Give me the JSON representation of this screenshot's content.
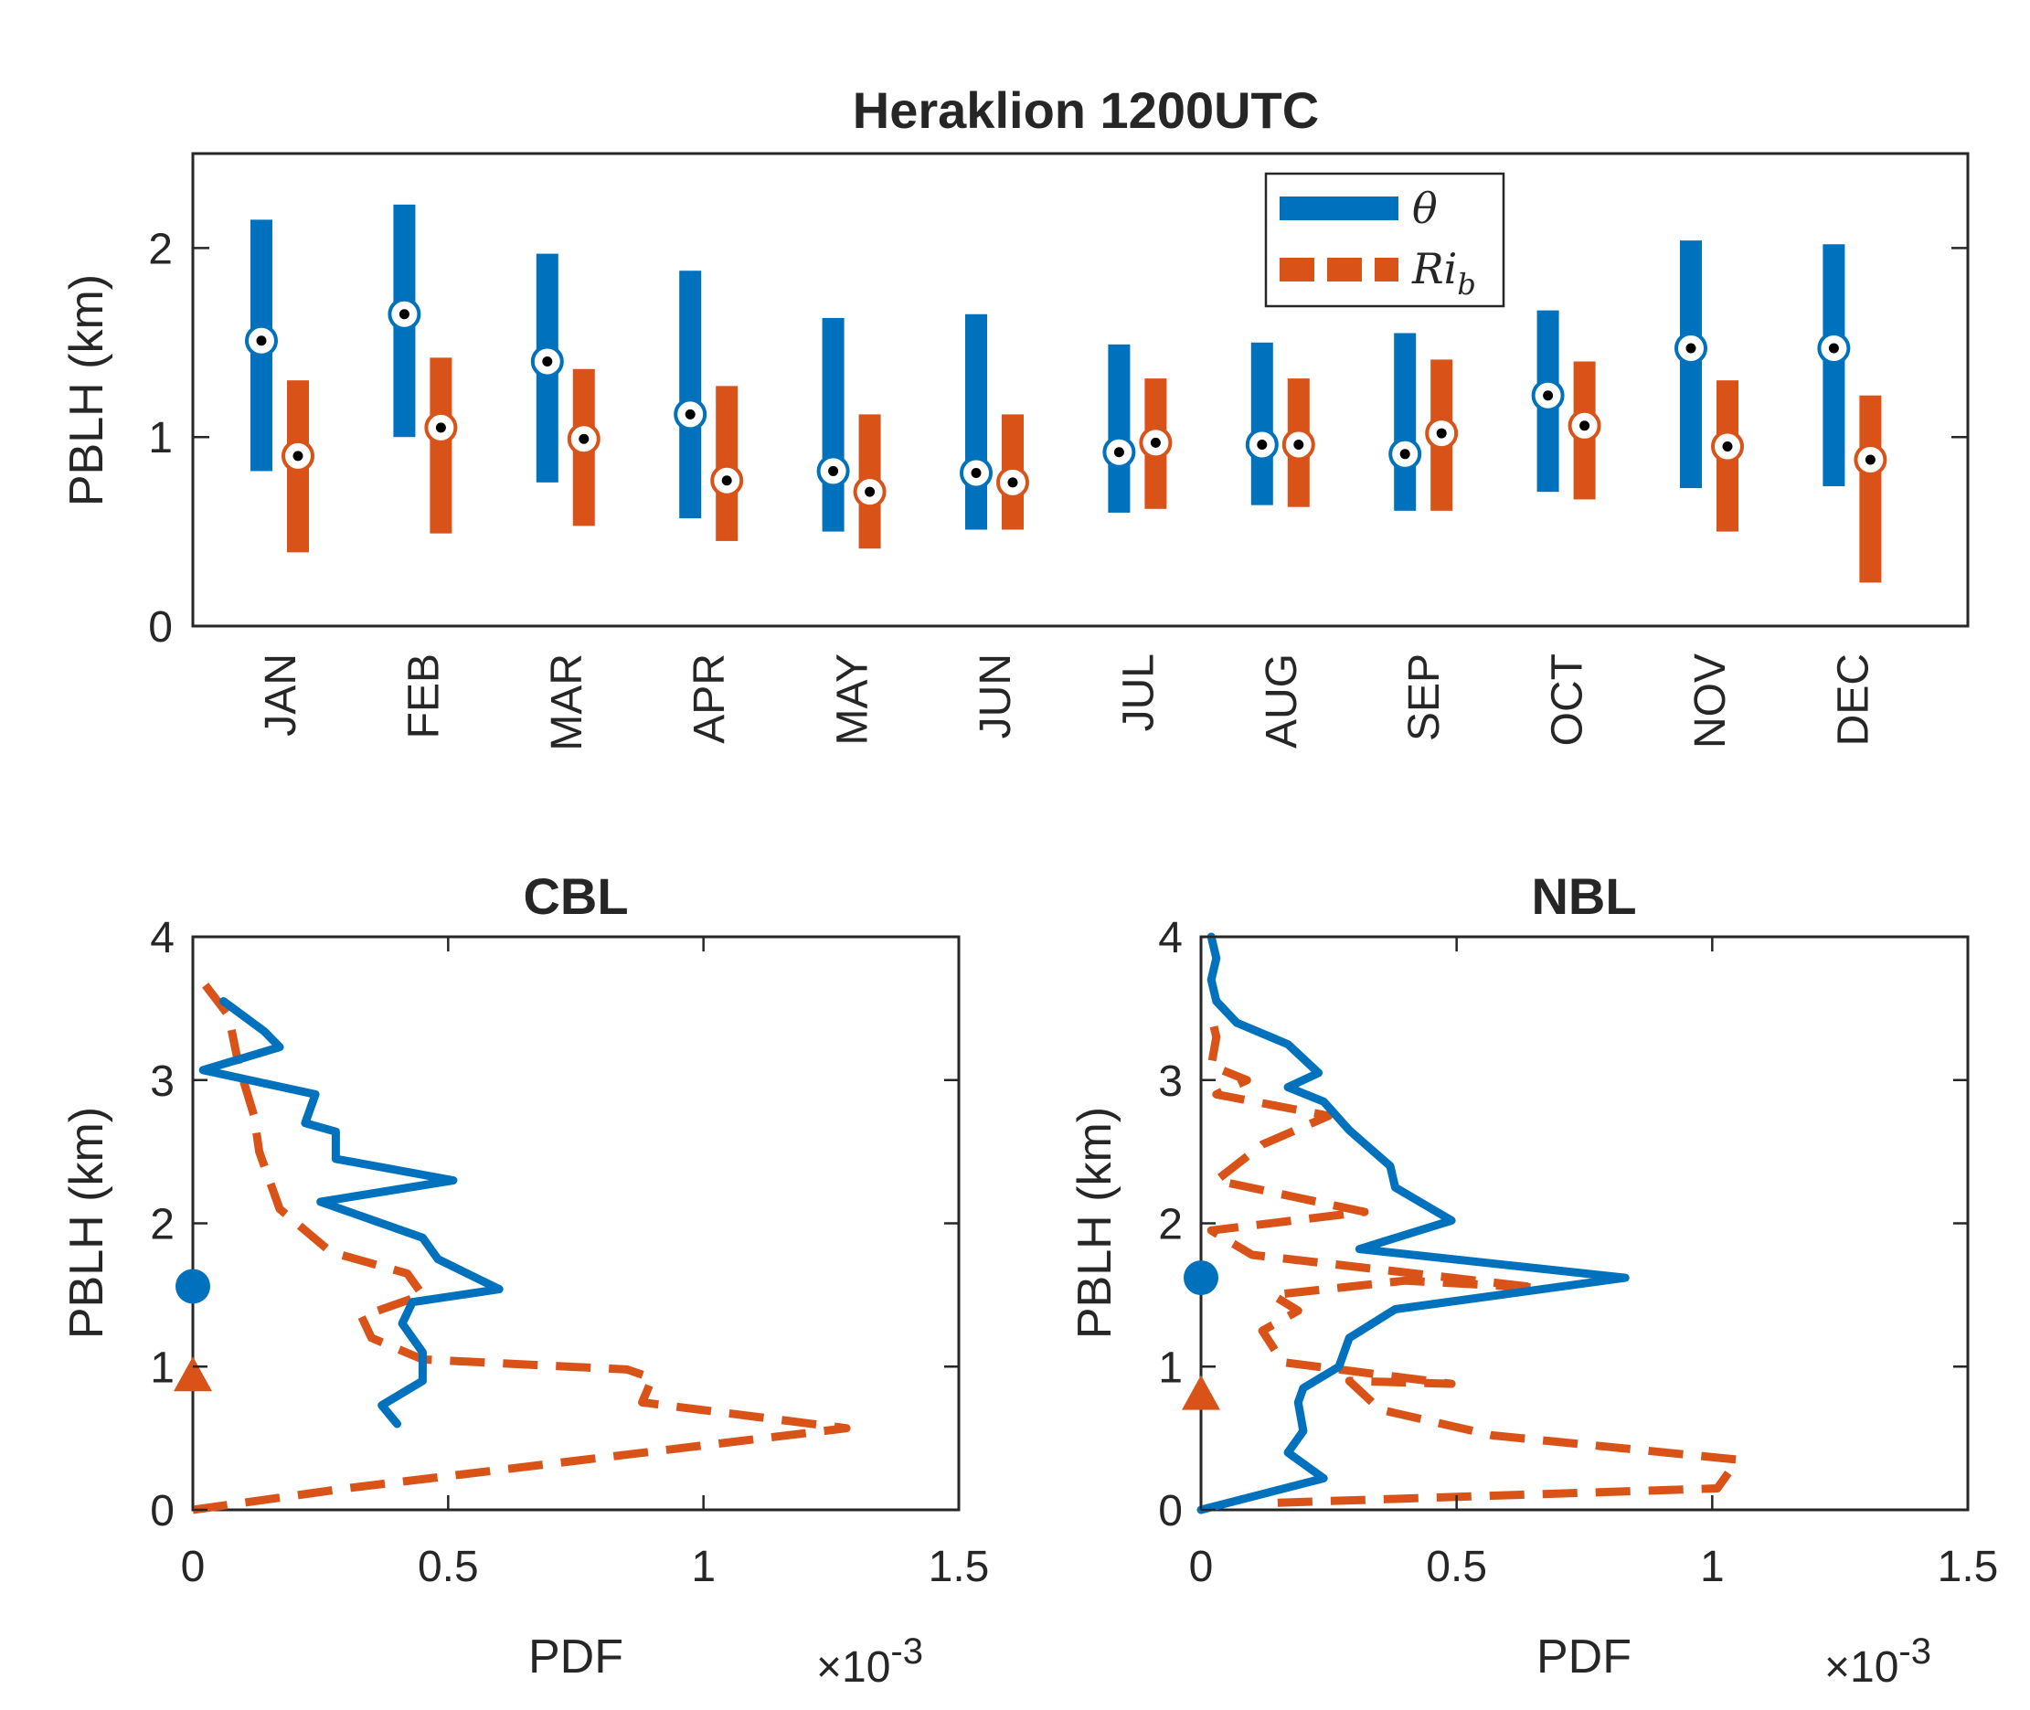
{
  "colors": {
    "theta": "#0072bd",
    "rib": "#d95319",
    "axis": "#262626"
  },
  "chart_data": [
    {
      "type": "range-bar",
      "title": "Heraklion 1200UTC",
      "ylabel": "PBLH (km)",
      "ylim": [
        0,
        2.5
      ],
      "yticks": [
        "0",
        "1",
        "2"
      ],
      "categories": [
        "JAN",
        "FEB",
        "MAR",
        "APR",
        "MAY",
        "JUN",
        "JUL",
        "AUG",
        "SEP",
        "OCT",
        "NOV",
        "DEC"
      ],
      "legend": {
        "theta": "θ",
        "rib_main": "Ri",
        "rib_sub": "b"
      },
      "series": [
        {
          "name": "theta",
          "color": "#0072bd",
          "low": [
            0.82,
            1.0,
            0.76,
            0.57,
            0.5,
            0.51,
            0.6,
            0.64,
            0.61,
            0.71,
            0.73,
            0.74
          ],
          "high": [
            2.15,
            2.23,
            1.97,
            1.88,
            1.63,
            1.65,
            1.49,
            1.5,
            1.55,
            1.67,
            2.04,
            2.02
          ],
          "median": [
            1.51,
            1.65,
            1.4,
            1.12,
            0.82,
            0.81,
            0.92,
            0.96,
            0.91,
            1.22,
            1.47,
            1.47
          ]
        },
        {
          "name": "rib",
          "color": "#d95319",
          "low": [
            0.39,
            0.49,
            0.53,
            0.45,
            0.41,
            0.51,
            0.62,
            0.63,
            0.61,
            0.67,
            0.5,
            0.23
          ],
          "high": [
            1.3,
            1.42,
            1.36,
            1.27,
            1.12,
            1.12,
            1.31,
            1.31,
            1.41,
            1.4,
            1.3,
            1.22
          ],
          "median": [
            0.9,
            1.05,
            0.99,
            0.77,
            0.71,
            0.76,
            0.97,
            0.96,
            1.02,
            1.06,
            0.95,
            0.88
          ]
        }
      ]
    },
    {
      "type": "line",
      "title": "CBL",
      "xlabel": "PDF",
      "ylabel": "PBLH (km)",
      "xlim": [
        0,
        0.0015
      ],
      "ylim": [
        0,
        4
      ],
      "xticks": [
        "0",
        "0.5",
        "1",
        "1.5"
      ],
      "yticks": [
        "0",
        "1",
        "2",
        "3",
        "4"
      ],
      "exponent": {
        "base": "×10",
        "power": "-3"
      },
      "series": [
        {
          "name": "theta",
          "style": "solid",
          "pdf": [
            0.0004,
            0.00037,
            0.00045,
            0.00045,
            0.00041,
            0.00043,
            0.0006,
            0.00048,
            0.00045,
            0.00025,
            0.00051,
            0.00028,
            0.00028,
            0.00022,
            0.00024,
            2e-05,
            0.00017,
            0.00014,
            6e-05
          ],
          "height": [
            0.6,
            0.73,
            0.9,
            1.1,
            1.3,
            1.45,
            1.54,
            1.75,
            1.9,
            2.15,
            2.3,
            2.45,
            2.64,
            2.7,
            2.9,
            3.07,
            3.23,
            3.34,
            3.55
          ]
        },
        {
          "name": "rib",
          "style": "dashed",
          "pdf": [
            0.0,
            0.0003,
            0.00128,
            0.00088,
            0.0009,
            0.00085,
            0.00045,
            0.00035,
            0.00033,
            0.00045,
            0.00042,
            0.00027,
            0.00017,
            0.00013,
            0.00012,
            9e-05,
            7e-05,
            1e-05
          ],
          "height": [
            0.0,
            0.15,
            0.57,
            0.75,
            0.92,
            0.98,
            1.05,
            1.2,
            1.35,
            1.5,
            1.65,
            1.8,
            2.1,
            2.5,
            2.75,
            3.1,
            3.45,
            3.73
          ]
        }
      ],
      "markers": {
        "theta_median_km": 1.56,
        "rib_median_km": 0.93
      }
    },
    {
      "type": "line",
      "title": "NBL",
      "xlabel": "PDF",
      "ylabel": "PBLH (km)",
      "xlim": [
        0,
        0.0015
      ],
      "ylim": [
        0,
        4
      ],
      "xticks": [
        "0",
        "0.5",
        "1",
        "1.5"
      ],
      "yticks": [
        "0",
        "1",
        "2",
        "3",
        "4"
      ],
      "exponent": {
        "base": "×10",
        "power": "-3"
      },
      "series": [
        {
          "name": "theta",
          "style": "solid",
          "pdf": [
            0.0,
            0.00024,
            0.00017,
            0.0002,
            0.00019,
            0.0002,
            0.00027,
            0.00029,
            0.00038,
            0.00083,
            0.00031,
            0.00049,
            0.00038,
            0.00037,
            0.00029,
            0.00024,
            0.00017,
            0.00023,
            0.00017,
            7e-05,
            3e-05,
            2e-05,
            3e-05,
            2e-05
          ],
          "height": [
            0.0,
            0.22,
            0.4,
            0.55,
            0.75,
            0.85,
            1.0,
            1.2,
            1.4,
            1.62,
            1.82,
            2.02,
            2.25,
            2.4,
            2.65,
            2.85,
            2.95,
            3.05,
            3.25,
            3.4,
            3.55,
            3.7,
            3.85,
            4.0
          ]
        },
        {
          "name": "rib",
          "style": "dashed",
          "pdf": [
            0.00015,
            0.00101,
            0.00105,
            0.00057,
            0.00035,
            0.00029,
            0.00049,
            0.00016,
            0.00012,
            0.00019,
            0.00014,
            0.0004,
            0.00066,
            0.0001,
            2e-05,
            0.00032,
            3e-05,
            0.00012,
            0.00025,
            3e-05,
            9e-05,
            2e-05,
            3e-05,
            2e-05
          ],
          "height": [
            0.05,
            0.15,
            0.35,
            0.52,
            0.7,
            0.9,
            0.88,
            1.03,
            1.25,
            1.39,
            1.5,
            1.6,
            1.55,
            1.78,
            1.95,
            2.08,
            2.3,
            2.55,
            2.75,
            2.9,
            3.0,
            3.1,
            3.3,
            3.45
          ]
        }
      ],
      "markers": {
        "theta_median_km": 1.62,
        "rib_median_km": 0.8
      }
    }
  ]
}
